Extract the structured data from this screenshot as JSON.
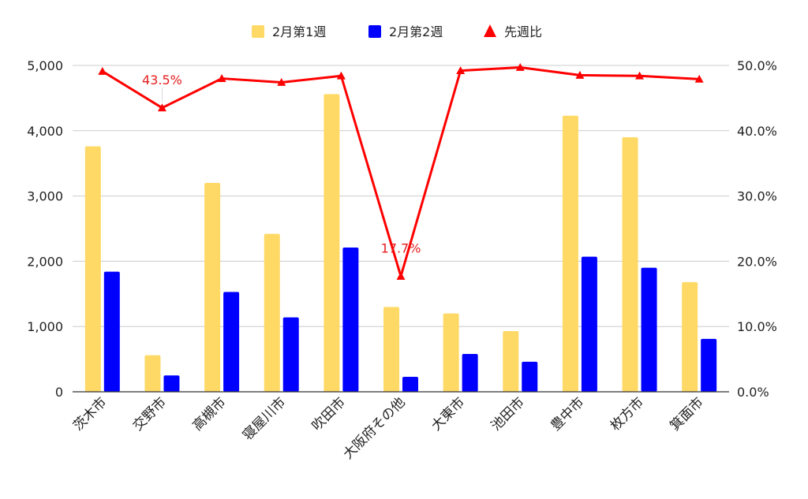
{
  "chart_data": {
    "type": "bar",
    "categories": [
      "茨木市",
      "交野市",
      "高槻市",
      "寝屋川市",
      "吹田市",
      "大阪府その他",
      "大東市",
      "池田市",
      "豊中市",
      "枚方市",
      "箕面市"
    ],
    "series": [
      {
        "name": "2月第1週",
        "type": "bar",
        "axis": "left",
        "color": "#ffd966",
        "values": [
          3760,
          560,
          3200,
          2420,
          4560,
          1300,
          1200,
          930,
          4230,
          3900,
          1680
        ]
      },
      {
        "name": "2月第2週",
        "type": "bar",
        "axis": "left",
        "color": "#0000ff",
        "values": [
          1840,
          250,
          1530,
          1140,
          2210,
          230,
          580,
          460,
          2070,
          1900,
          810
        ]
      },
      {
        "name": "先週比",
        "type": "line",
        "axis": "right",
        "color": "#ff0000",
        "marker": "triangle",
        "values": [
          49.1,
          43.5,
          48.0,
          47.4,
          48.4,
          17.7,
          49.2,
          49.7,
          48.5,
          48.4,
          47.9
        ]
      }
    ],
    "annotations": [
      {
        "series": "先週比",
        "category": "交野市",
        "text": "43.5%"
      },
      {
        "series": "先週比",
        "category": "大阪府その他",
        "text": "17.7%"
      }
    ],
    "y_left": {
      "ylim": [
        0,
        5000
      ],
      "ticks": [
        "0",
        "1,000",
        "2,000",
        "3,000",
        "4,000",
        "5,000"
      ]
    },
    "y_right": {
      "ylim": [
        0,
        50
      ],
      "ticks": [
        "0.0%",
        "10.0%",
        "20.0%",
        "30.0%",
        "40.0%",
        "50.0%"
      ]
    },
    "grid": true,
    "legend_position": "top",
    "title": "",
    "xlabel": "",
    "ylabel": ""
  }
}
